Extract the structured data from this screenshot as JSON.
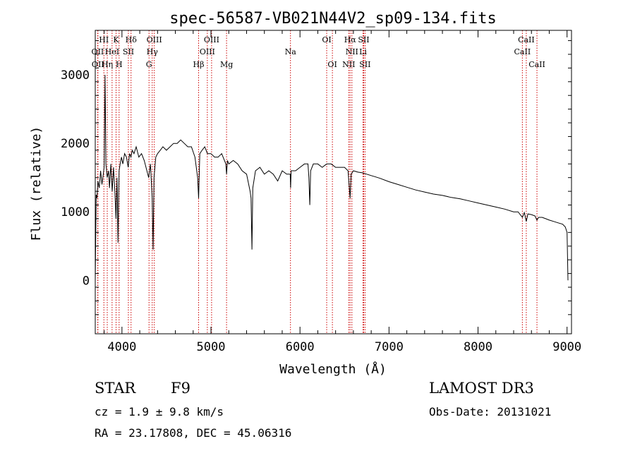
{
  "chart_data": {
    "type": "line",
    "title": "spec-56587-VB021N44V2_sp09-134.fits",
    "xlabel": "Wavelength (Å)",
    "ylabel": "Flux (relative)",
    "xlim": [
      3700,
      9050
    ],
    "ylim": [
      -780,
      3650
    ],
    "xticks": [
      4000,
      5000,
      6000,
      7000,
      8000,
      9000
    ],
    "yticks": [
      0,
      1000,
      2000,
      3000
    ],
    "series": [
      {
        "x": [
          3700,
          3710,
          3720,
          3730,
          3745,
          3760,
          3775,
          3790,
          3800,
          3810,
          3820,
          3835,
          3850,
          3860,
          3875,
          3890,
          3905,
          3920,
          3933,
          3945,
          3955,
          3968,
          3980,
          3995,
          4010,
          4030,
          4050,
          4070,
          4085,
          4101,
          4115,
          4135,
          4160,
          4190,
          4220,
          4250,
          4280,
          4300,
          4320,
          4340,
          4350,
          4360,
          4380,
          4400,
          4430,
          4460,
          4500,
          4540,
          4580,
          4620,
          4660,
          4700,
          4740,
          4780,
          4820,
          4850,
          4861,
          4875,
          4900,
          4930,
          4960,
          5000,
          5040,
          5080,
          5120,
          5167,
          5175,
          5185,
          5200,
          5250,
          5300,
          5350,
          5400,
          5440,
          5450,
          5460,
          5470,
          5500,
          5550,
          5600,
          5650,
          5700,
          5750,
          5800,
          5850,
          5890,
          5895,
          5900,
          5950,
          6000,
          6050,
          6090,
          6100,
          6110,
          6120,
          6135,
          6150,
          6200,
          6250,
          6300,
          6350,
          6400,
          6450,
          6500,
          6540,
          6563,
          6575,
          6600,
          6650,
          6700,
          6750,
          6800,
          6850,
          6900,
          7000,
          7100,
          7200,
          7300,
          7400,
          7500,
          7600,
          7700,
          7800,
          7900,
          8000,
          8100,
          8200,
          8300,
          8400,
          8450,
          8498,
          8520,
          8542,
          8560,
          8600,
          8640,
          8662,
          8680,
          8720,
          8760,
          8800,
          8850,
          8900,
          8950,
          8980,
          9000,
          9010
        ],
        "y": [
          0,
          1250,
          1200,
          1450,
          1350,
          1600,
          1400,
          1550,
          1650,
          3000,
          1700,
          1500,
          1600,
          1350,
          1700,
          1300,
          1650,
          1300,
          900,
          1500,
          550,
          1600,
          1700,
          1800,
          1700,
          1850,
          1800,
          1650,
          1850,
          1800,
          1900,
          1850,
          1950,
          1800,
          1850,
          1750,
          1600,
          1500,
          1700,
          1200,
          450,
          1500,
          1800,
          1850,
          1900,
          1950,
          1900,
          1950,
          2000,
          2000,
          2050,
          2000,
          1950,
          1950,
          1800,
          1500,
          1200,
          1850,
          1900,
          1950,
          1850,
          1850,
          1800,
          1800,
          1850,
          1700,
          1550,
          1750,
          1700,
          1750,
          1700,
          1600,
          1550,
          1300,
          1200,
          450,
          1350,
          1600,
          1650,
          1550,
          1600,
          1550,
          1450,
          1600,
          1550,
          1550,
          1350,
          1600,
          1600,
          1650,
          1700,
          1700,
          1500,
          1100,
          1600,
          1650,
          1700,
          1700,
          1650,
          1700,
          1700,
          1650,
          1650,
          1650,
          1600,
          1200,
          1550,
          1600,
          1580,
          1570,
          1550,
          1530,
          1510,
          1490,
          1440,
          1400,
          1360,
          1320,
          1290,
          1260,
          1240,
          1210,
          1190,
          1160,
          1130,
          1100,
          1070,
          1040,
          1000,
          1000,
          920,
          990,
          860,
          970,
          960,
          940,
          880,
          920,
          920,
          900,
          880,
          860,
          840,
          820,
          780,
          700,
          0
        ]
      }
    ],
    "lines_list": [
      {
        "label": "HI",
        "x": 3797,
        "row": 0
      },
      {
        "label": "K",
        "x": 3934,
        "row": 0
      },
      {
        "label": "Hδ",
        "x": 4102,
        "row": 0
      },
      {
        "label": "OIII",
        "x": 4363,
        "row": 0
      },
      {
        "label": "OIII",
        "x": 5007,
        "row": 0
      },
      {
        "label": "OI",
        "x": 6300,
        "row": 0
      },
      {
        "label": "Hα",
        "x": 6563,
        "row": 0
      },
      {
        "label": "SII",
        "x": 6716,
        "row": 0
      },
      {
        "label": "CaII",
        "x": 8542,
        "row": 0
      },
      {
        "label": "OII",
        "x": 3727,
        "row": 1
      },
      {
        "label": "HeI",
        "x": 3889,
        "row": 1
      },
      {
        "label": "SII",
        "x": 4072,
        "row": 1
      },
      {
        "label": "Hγ",
        "x": 4340,
        "row": 1
      },
      {
        "label": "OIII",
        "x": 4959,
        "row": 1
      },
      {
        "label": "Na",
        "x": 5893,
        "row": 1
      },
      {
        "label": "NII",
        "x": 6583,
        "row": 1
      },
      {
        "label": "Li",
        "x": 6708,
        "row": 1
      },
      {
        "label": "CaII",
        "x": 8498,
        "row": 1
      },
      {
        "label": "OII",
        "x": 3730,
        "row": 2
      },
      {
        "label": "Hη",
        "x": 3835,
        "row": 2
      },
      {
        "label": "H",
        "x": 3968,
        "row": 2
      },
      {
        "label": "G",
        "x": 4304,
        "row": 2
      },
      {
        "label": "Hβ",
        "x": 4861,
        "row": 2
      },
      {
        "label": "Mg",
        "x": 5175,
        "row": 2
      },
      {
        "label": "OI",
        "x": 6364,
        "row": 2
      },
      {
        "label": "NII",
        "x": 6548,
        "row": 2
      },
      {
        "label": "SII",
        "x": 6731,
        "row": 2
      },
      {
        "label": "CaII",
        "x": 8662,
        "row": 2
      }
    ],
    "line_color": "#cc0000"
  },
  "info": {
    "class": "STAR",
    "subclass": "F9",
    "survey": "LAMOST DR3",
    "cz": "cz = 1.9 ± 9.8 km/s",
    "obs_date": "Obs-Date: 20131021",
    "radec": "RA =  23.17808, DEC =  45.06316"
  }
}
